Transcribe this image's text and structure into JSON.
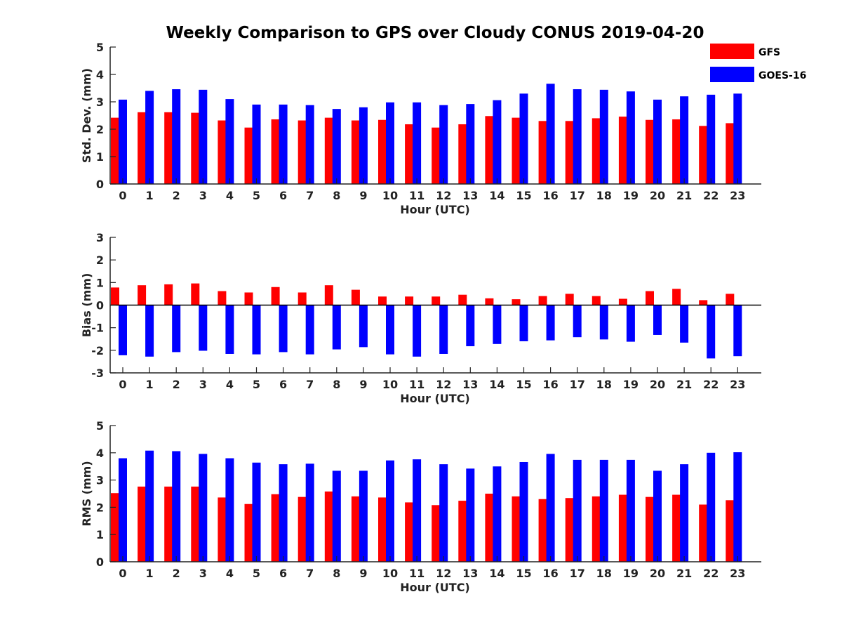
{
  "title": "Weekly Comparison to GPS over Cloudy CONUS 2019-04-20",
  "legend": {
    "placement": "top-right, outside plot",
    "entries": [
      {
        "label": "GFS",
        "color": "#ff0000"
      },
      {
        "label": "GOES-16",
        "color": "#0000ff"
      }
    ]
  },
  "chart_data": [
    {
      "type": "bar",
      "xlabel": "Hour (UTC)",
      "ylabel": "Std. Dev. (mm)",
      "ylim": [
        0,
        5
      ],
      "yticks": [
        0,
        1,
        2,
        3,
        4,
        5
      ],
      "grid": false,
      "categories": [
        "0",
        "1",
        "2",
        "3",
        "4",
        "5",
        "6",
        "7",
        "8",
        "9",
        "10",
        "11",
        "12",
        "13",
        "14",
        "15",
        "16",
        "17",
        "18",
        "19",
        "20",
        "21",
        "22",
        "23"
      ],
      "series": [
        {
          "name": "GFS",
          "color": "#ff0000",
          "values": [
            2.42,
            2.62,
            2.62,
            2.6,
            2.32,
            2.06,
            2.36,
            2.32,
            2.42,
            2.32,
            2.34,
            2.18,
            2.06,
            2.18,
            2.48,
            2.42,
            2.3,
            2.3,
            2.4,
            2.46,
            2.34,
            2.36,
            2.12,
            2.22
          ]
        },
        {
          "name": "GOES-16",
          "color": "#0000ff",
          "values": [
            3.08,
            3.4,
            3.46,
            3.44,
            3.1,
            2.9,
            2.9,
            2.88,
            2.74,
            2.8,
            2.98,
            2.98,
            2.88,
            2.92,
            3.06,
            3.3,
            3.66,
            3.46,
            3.44,
            3.38,
            3.08,
            3.2,
            3.26,
            3.3
          ]
        }
      ]
    },
    {
      "type": "bar",
      "xlabel": "Hour (UTC)",
      "ylabel": "Bias (mm)",
      "ylim": [
        -3,
        3
      ],
      "yticks": [
        -3,
        -2,
        -1,
        0,
        1,
        2,
        3
      ],
      "grid": false,
      "zero_line": true,
      "categories": [
        "0",
        "1",
        "2",
        "3",
        "4",
        "5",
        "6",
        "7",
        "8",
        "9",
        "10",
        "11",
        "12",
        "13",
        "14",
        "15",
        "16",
        "17",
        "18",
        "19",
        "20",
        "21",
        "22",
        "23"
      ],
      "series": [
        {
          "name": "GFS",
          "color": "#ff0000",
          "values": [
            0.78,
            0.88,
            0.92,
            0.96,
            0.62,
            0.56,
            0.8,
            0.56,
            0.88,
            0.68,
            0.38,
            0.38,
            0.38,
            0.46,
            0.3,
            0.26,
            0.4,
            0.5,
            0.4,
            0.28,
            0.62,
            0.72,
            0.22,
            0.5
          ]
        },
        {
          "name": "GOES-16",
          "color": "#0000ff",
          "values": [
            -2.22,
            -2.28,
            -2.08,
            -2.02,
            -2.16,
            -2.18,
            -2.08,
            -2.18,
            -1.96,
            -1.86,
            -2.18,
            -2.28,
            -2.16,
            -1.82,
            -1.72,
            -1.6,
            -1.56,
            -1.42,
            -1.52,
            -1.62,
            -1.32,
            -1.66,
            -2.36,
            -2.26
          ]
        }
      ]
    },
    {
      "type": "bar",
      "xlabel": "Hour (UTC)",
      "ylabel": "RMS (mm)",
      "ylim": [
        0,
        5
      ],
      "yticks": [
        0,
        1,
        2,
        3,
        4,
        5
      ],
      "grid": false,
      "categories": [
        "0",
        "1",
        "2",
        "3",
        "4",
        "5",
        "6",
        "7",
        "8",
        "9",
        "10",
        "11",
        "12",
        "13",
        "14",
        "15",
        "16",
        "17",
        "18",
        "19",
        "20",
        "21",
        "22",
        "23"
      ],
      "series": [
        {
          "name": "GFS",
          "color": "#ff0000",
          "values": [
            2.52,
            2.76,
            2.76,
            2.76,
            2.36,
            2.12,
            2.48,
            2.38,
            2.58,
            2.4,
            2.36,
            2.18,
            2.08,
            2.24,
            2.5,
            2.4,
            2.3,
            2.34,
            2.4,
            2.46,
            2.38,
            2.46,
            2.1,
            2.26
          ]
        },
        {
          "name": "GOES-16",
          "color": "#0000ff",
          "values": [
            3.8,
            4.08,
            4.06,
            3.96,
            3.8,
            3.64,
            3.58,
            3.6,
            3.34,
            3.34,
            3.72,
            3.76,
            3.58,
            3.42,
            3.5,
            3.66,
            3.96,
            3.74,
            3.74,
            3.74,
            3.34,
            3.58,
            4.0,
            4.02
          ]
        }
      ]
    }
  ]
}
